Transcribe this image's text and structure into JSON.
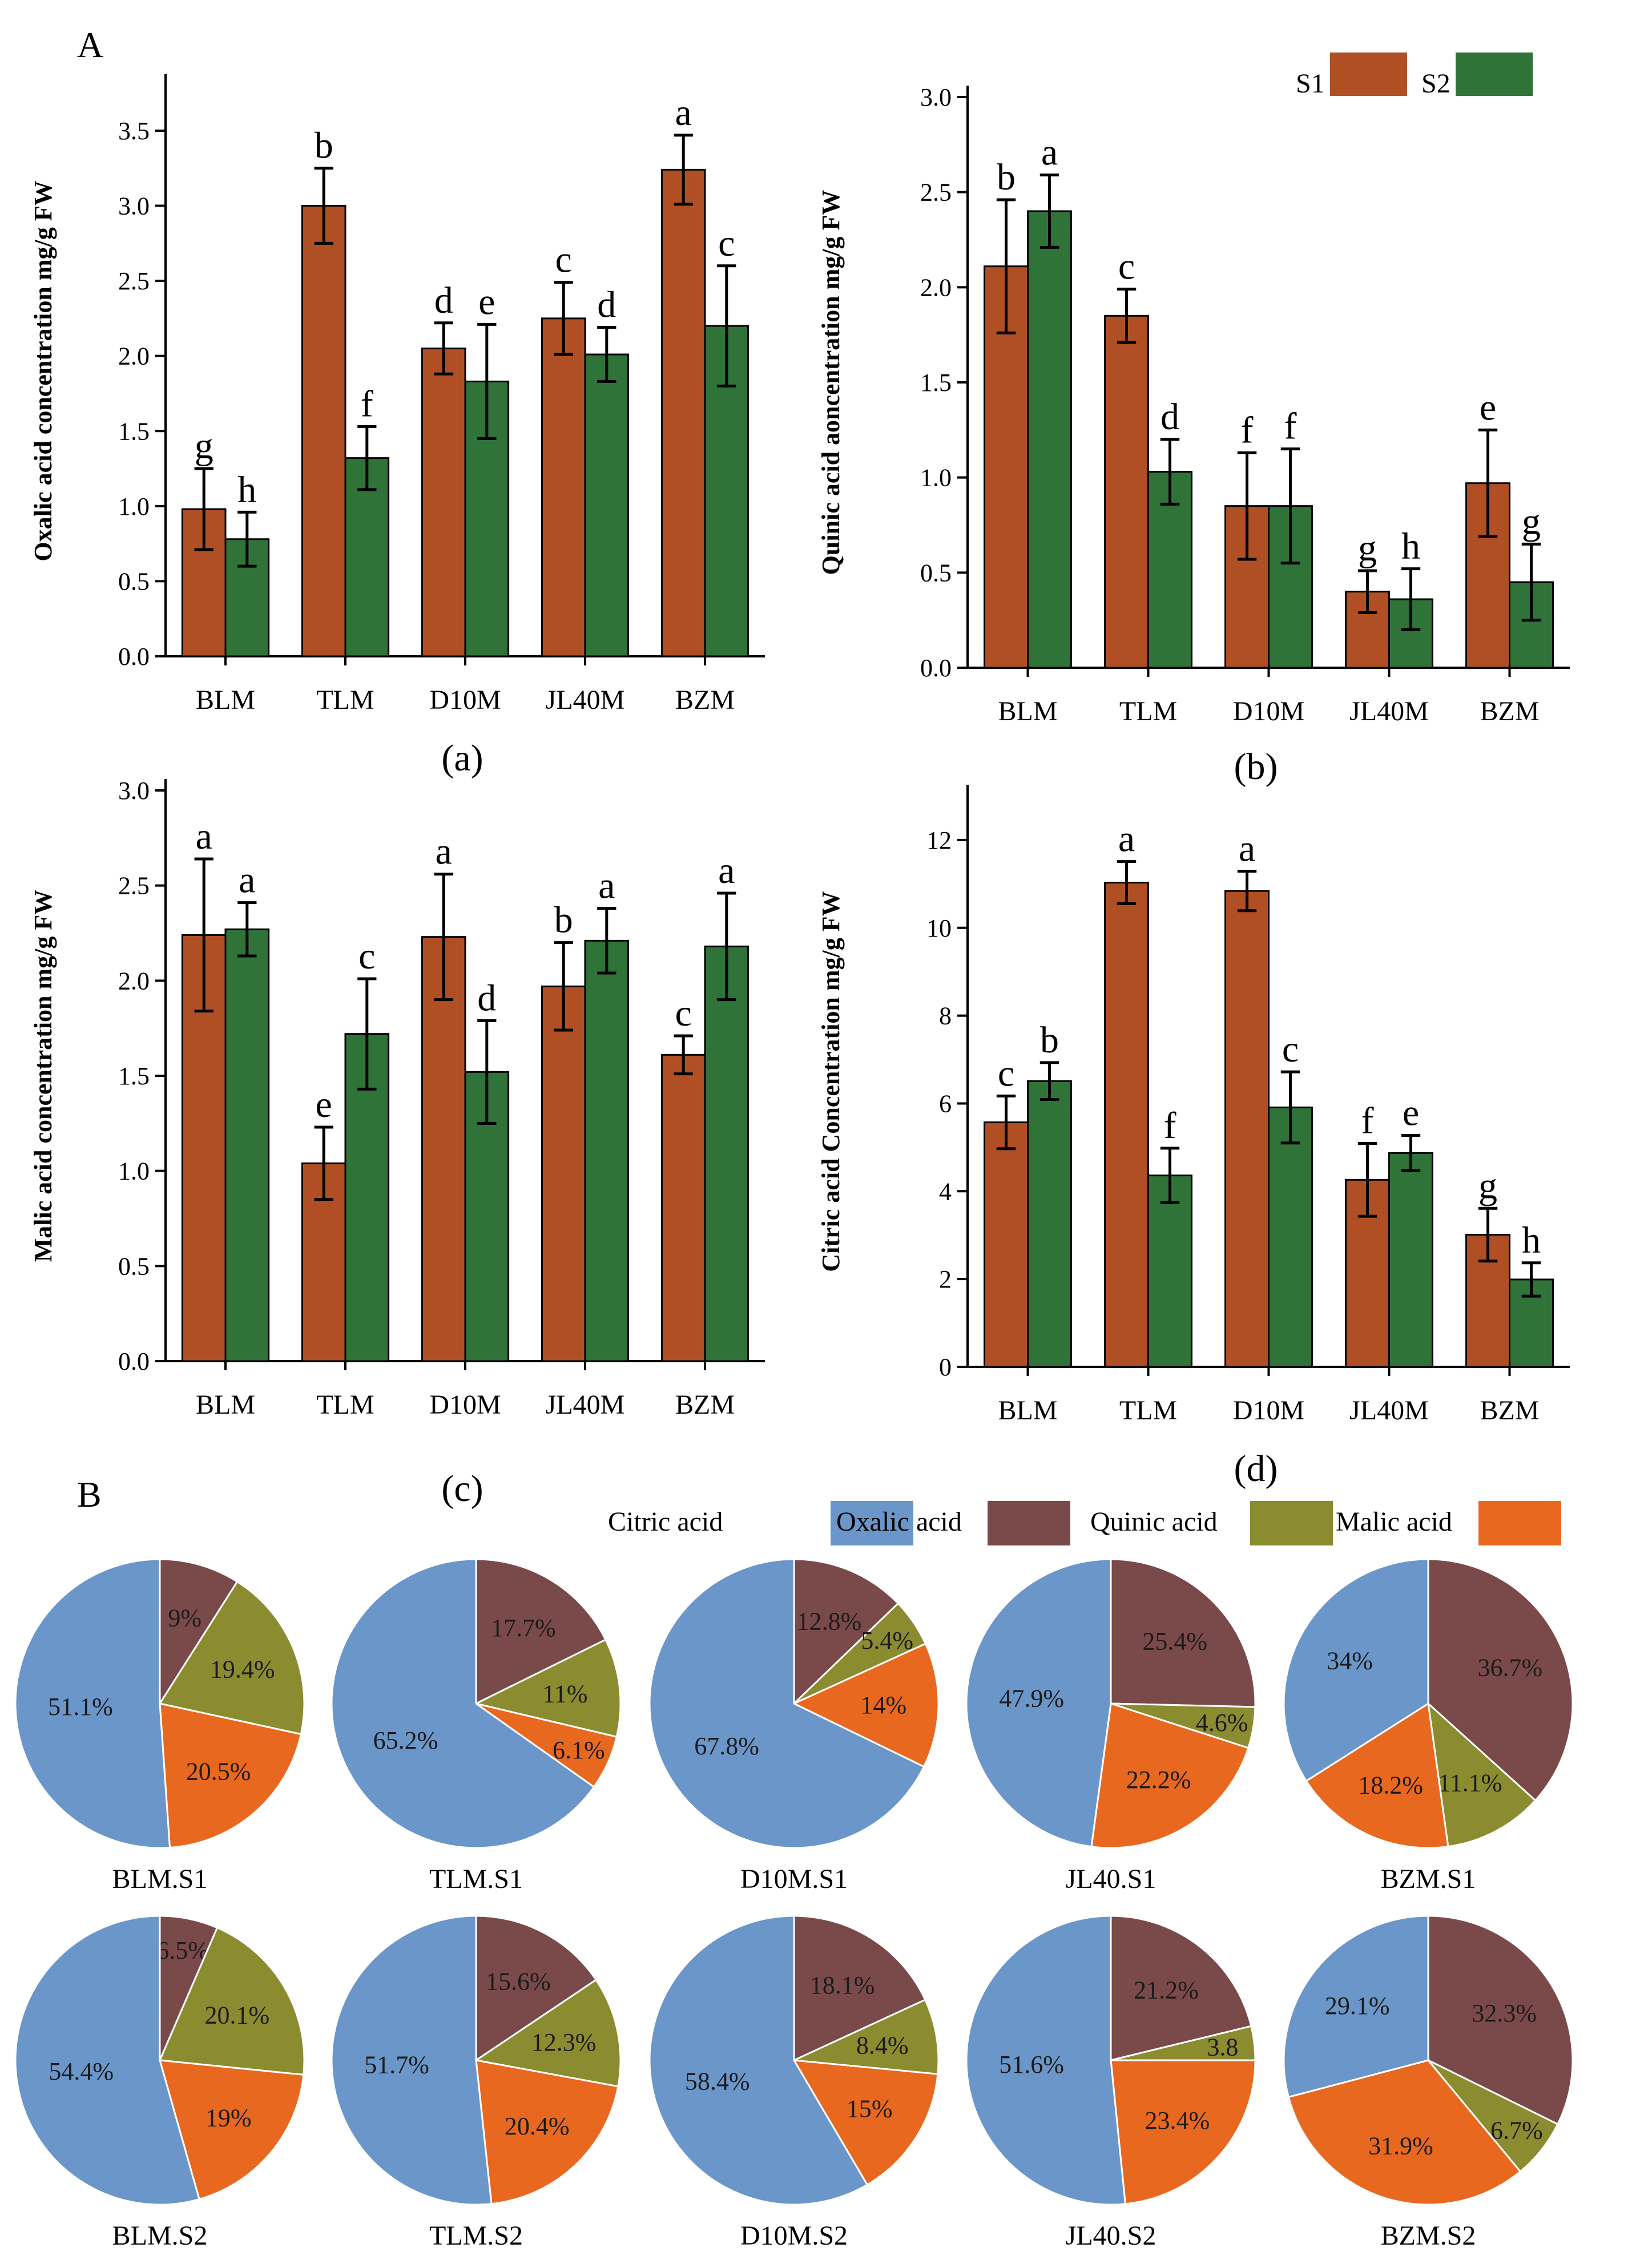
{
  "figure": {
    "panel_a_letter": "A",
    "panel_b_letter": "B"
  },
  "colors": {
    "S1": "#B04F23",
    "S2": "#2F7339",
    "Citric acid": "#6A96C9",
    "Oxalic acid": "#7A4A4B",
    "Quinic acid": "#8B8B30",
    "Malic acid": "#E8681F"
  },
  "chart_data": [
    {
      "id": "a",
      "type": "bar",
      "panel_label": "(a)",
      "ylabel": "Oxalic acid concentration mg/g FW",
      "xlabel": "",
      "categories": [
        "BLM",
        "TLM",
        "D10M",
        "JL40M",
        "BZM"
      ],
      "ylim": [
        0,
        3.8
      ],
      "yticks": [
        0.0,
        0.5,
        1.0,
        1.5,
        2.0,
        2.5,
        3.0,
        3.5
      ],
      "ytick_labels": [
        "0.0",
        "0.5",
        "1.0",
        "1.5",
        "2.0",
        "2.5",
        "3.0",
        "3.5"
      ],
      "series": [
        {
          "name": "S1",
          "values": [
            0.98,
            3.0,
            2.05,
            2.25,
            3.24
          ],
          "errors": [
            0.27,
            0.25,
            0.17,
            0.24,
            0.23
          ],
          "letters": [
            "g",
            "b",
            "d",
            "c",
            "a"
          ]
        },
        {
          "name": "S2",
          "values": [
            0.78,
            1.32,
            1.83,
            2.01,
            2.2
          ],
          "errors": [
            0.18,
            0.21,
            0.38,
            0.18,
            0.4
          ],
          "letters": [
            "h",
            "f",
            "e",
            "d",
            "c"
          ]
        }
      ]
    },
    {
      "id": "b",
      "type": "bar",
      "panel_label": "(b)",
      "ylabel": "Quinic acid aoncentration mg/g FW",
      "xlabel": "",
      "categories": [
        "BLM",
        "TLM",
        "D10M",
        "JL40M",
        "BZM"
      ],
      "ylim": [
        0,
        3.0
      ],
      "yticks": [
        0.0,
        0.5,
        1.0,
        1.5,
        2.0,
        2.5,
        3.0
      ],
      "ytick_labels": [
        "0.0",
        "0.5",
        "1.0",
        "1.5",
        "2.0",
        "2.5",
        "3.0"
      ],
      "legend": {
        "placement": "top-right",
        "entries": [
          "S1",
          "S2"
        ]
      },
      "series": [
        {
          "name": "S1",
          "values": [
            2.11,
            1.85,
            0.85,
            0.4,
            0.97
          ],
          "errors": [
            0.35,
            0.14,
            0.28,
            0.11,
            0.28
          ],
          "letters": [
            "b",
            "c",
            "f",
            "g",
            "e"
          ]
        },
        {
          "name": "S2",
          "values": [
            2.4,
            1.03,
            0.85,
            0.36,
            0.45
          ],
          "errors": [
            0.19,
            0.17,
            0.3,
            0.16,
            0.2
          ],
          "letters": [
            "a",
            "d",
            "f",
            "h",
            "g"
          ]
        }
      ]
    },
    {
      "id": "c",
      "type": "bar",
      "panel_label": "(c)",
      "ylabel": "Malic acid concentration mg/g FW",
      "xlabel": "",
      "categories": [
        "BLM",
        "TLM",
        "D10M",
        "JL40M",
        "BZM"
      ],
      "ylim": [
        0,
        3.0
      ],
      "yticks": [
        0.0,
        0.5,
        1.0,
        1.5,
        2.0,
        2.5,
        3.0
      ],
      "ytick_labels": [
        "0.0",
        "0.5",
        "1.0",
        "1.5",
        "2.0",
        "2.5",
        "3.0"
      ],
      "series": [
        {
          "name": "S1",
          "values": [
            2.24,
            1.04,
            2.23,
            1.97,
            1.61
          ],
          "errors": [
            0.4,
            0.19,
            0.33,
            0.23,
            0.1
          ],
          "letters": [
            "a",
            "e",
            "a",
            "b",
            "c"
          ]
        },
        {
          "name": "S2",
          "values": [
            2.27,
            1.72,
            1.52,
            2.21,
            2.18
          ],
          "errors": [
            0.14,
            0.29,
            0.27,
            0.17,
            0.28
          ],
          "letters": [
            "a",
            "c",
            "d",
            "a",
            "a"
          ]
        }
      ]
    },
    {
      "id": "d",
      "type": "bar",
      "panel_label": "(d)",
      "ylabel": "Citric acid Concentration mg/g FW",
      "xlabel": "",
      "categories": [
        "BLM",
        "TLM",
        "D10M",
        "JL40M",
        "BZM"
      ],
      "ylim": [
        0,
        13
      ],
      "yticks": [
        0,
        2,
        4,
        6,
        8,
        10,
        12
      ],
      "ytick_labels": [
        "0",
        "2",
        "4",
        "6",
        "8",
        "10",
        "12"
      ],
      "series": [
        {
          "name": "S1",
          "values": [
            5.57,
            11.03,
            10.84,
            4.26,
            3.01
          ],
          "errors": [
            0.6,
            0.48,
            0.45,
            0.83,
            0.6
          ],
          "letters": [
            "c",
            "a",
            "a",
            "f",
            "g"
          ]
        },
        {
          "name": "S2",
          "values": [
            6.51,
            4.36,
            5.91,
            4.87,
            1.99
          ],
          "errors": [
            0.42,
            0.62,
            0.81,
            0.4,
            0.38
          ],
          "letters": [
            "b",
            "f",
            "c",
            "e",
            "h"
          ]
        }
      ]
    },
    {
      "id": "pies",
      "type": "pie",
      "legend": {
        "placement": "top-right",
        "entries": [
          "Citric acid",
          "Oxalic acid",
          "Quinic acid",
          "Malic acid"
        ]
      },
      "slice_order": [
        "Oxalic acid",
        "Quinic acid",
        "Malic acid",
        "Citric acid"
      ],
      "pies": [
        {
          "title": "BLM.S1",
          "values": [
            9.0,
            19.4,
            20.5,
            51.1
          ],
          "labels": [
            "9%",
            "19.4%",
            "20.5%",
            "51.1%"
          ]
        },
        {
          "title": "TLM.S1",
          "values": [
            17.7,
            11.0,
            6.1,
            65.2
          ],
          "labels": [
            "17.7%",
            "11%",
            "6.1%",
            "65.2%"
          ]
        },
        {
          "title": "D10M.S1",
          "values": [
            12.8,
            5.4,
            14.0,
            67.8
          ],
          "labels": [
            "12.8%",
            "5.4%",
            "14%",
            "67.8%"
          ]
        },
        {
          "title": "JL40.S1",
          "values": [
            25.4,
            4.6,
            22.2,
            47.9
          ],
          "labels": [
            "25.4%",
            "4.6%",
            "22.2%",
            "47.9%"
          ]
        },
        {
          "title": "BZM.S1",
          "values": [
            36.7,
            11.1,
            18.2,
            34.0
          ],
          "labels": [
            "36.7%",
            "11.1%",
            "18.2%",
            "34%"
          ]
        },
        {
          "title": "BLM.S2",
          "values": [
            6.5,
            20.1,
            19.0,
            54.4
          ],
          "labels": [
            "6.5%",
            "20.1%",
            "19%",
            "54.4%"
          ]
        },
        {
          "title": "TLM.S2",
          "values": [
            15.6,
            12.3,
            20.4,
            51.7
          ],
          "labels": [
            "15.6%",
            "12.3%",
            "20.4%",
            "51.7%"
          ]
        },
        {
          "title": "D10M.S2",
          "values": [
            18.1,
            8.4,
            15.0,
            58.4
          ],
          "labels": [
            "18.1%",
            "8.4%",
            "15%",
            "58.4%"
          ]
        },
        {
          "title": "JL40.S2",
          "values": [
            21.2,
            3.8,
            23.4,
            51.6
          ],
          "labels": [
            "21.2%",
            "3.8",
            "23.4%",
            "51.6%"
          ]
        },
        {
          "title": "BZM.S2",
          "values": [
            32.3,
            6.7,
            31.9,
            29.1
          ],
          "labels": [
            "32.3%",
            "6.7%",
            "31.9%",
            "29.1%"
          ]
        }
      ]
    }
  ]
}
